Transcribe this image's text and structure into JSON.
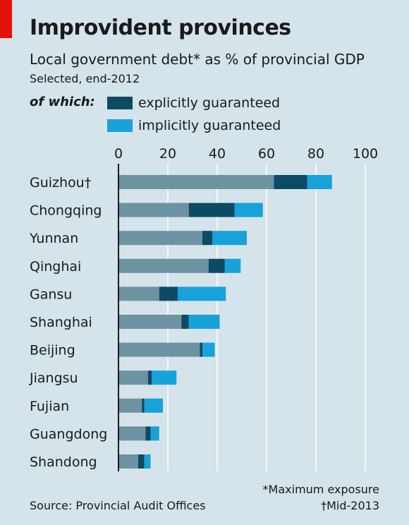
{
  "header": {
    "title": "Improvident provinces",
    "subtitle": "Local government debt* as % of provincial GDP",
    "subnote": "Selected, end-2012"
  },
  "legend": {
    "lead": "of which:",
    "items": [
      {
        "label": "explicitly guaranteed",
        "color": "#0d4a63"
      },
      {
        "label": "implicitly guaranteed",
        "color": "#17a2da"
      }
    ]
  },
  "footer": {
    "source": "Source: Provincial Audit Offices",
    "note1": "*Maximum exposure",
    "note2": "†Mid-2013"
  },
  "colors": {
    "direct": "#6d93a2",
    "explicit": "#0d4a63",
    "implicit": "#17a2da",
    "grid": "#ffffff",
    "axis": "#1a1a1a",
    "background": "#d5e3ea"
  },
  "chart_data": {
    "type": "bar",
    "orientation": "horizontal",
    "stacked": true,
    "title": "Improvident provinces",
    "subtitle": "Local government debt* as % of provincial GDP",
    "xlim": [
      0,
      100
    ],
    "xticks": [
      0,
      20,
      40,
      60,
      80,
      100
    ],
    "grid": true,
    "categories": [
      "Guizhou†",
      "Chongqing",
      "Yunnan",
      "Qinghai",
      "Gansu",
      "Shanghai",
      "Beijing",
      "Jiangsu",
      "Fujian",
      "Guangdong",
      "Shandong"
    ],
    "series": [
      {
        "name": "",
        "color_key": "direct",
        "values": [
          63,
          28.5,
          34,
          36.5,
          16.5,
          25.5,
          33,
          12,
          9.5,
          11,
          8
        ]
      },
      {
        "name": "explicitly guaranteed",
        "color_key": "explicit",
        "values": [
          13.5,
          18.5,
          4,
          6.5,
          7.5,
          3,
          1,
          1.5,
          1,
          2,
          2.5
        ]
      },
      {
        "name": "implicitly guaranteed",
        "color_key": "implicit",
        "values": [
          10,
          11.5,
          14,
          6.5,
          19.5,
          12.5,
          5,
          10,
          7.5,
          3.5,
          2.5
        ]
      }
    ]
  }
}
